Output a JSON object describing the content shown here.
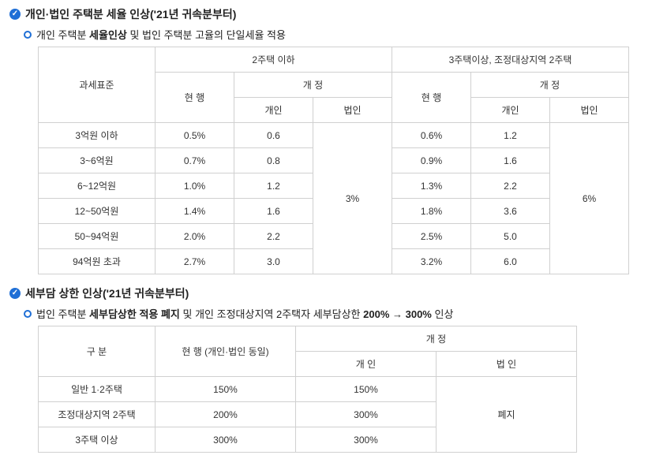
{
  "section1": {
    "title": "개인·법인 주택분 세율 인상('21년 귀속분부터)",
    "subtitle_prefix": "개인 주택분 ",
    "subtitle_bold": "세율인상",
    "subtitle_suffix": " 및 법인 주택분 고율의 단일세율 적용",
    "table": {
      "header": {
        "col1": "과세표준",
        "group1": "2주택 이하",
        "group2": "3주택이상, 조정대상지역 2주택",
        "current": "현 행",
        "revised": "개 정",
        "indiv": "개인",
        "corp": "법인"
      },
      "rows": [
        {
          "cat": "3억원 이하",
          "cur1": "0.5%",
          "rev1": "0.6",
          "cur2": "0.6%",
          "rev2": "1.2"
        },
        {
          "cat": "3~6억원",
          "cur1": "0.7%",
          "rev1": "0.8",
          "cur2": "0.9%",
          "rev2": "1.6"
        },
        {
          "cat": "6~12억원",
          "cur1": "1.0%",
          "rev1": "1.2",
          "cur2": "1.3%",
          "rev2": "2.2"
        },
        {
          "cat": "12~50억원",
          "cur1": "1.4%",
          "rev1": "1.6",
          "cur2": "1.8%",
          "rev2": "3.6"
        },
        {
          "cat": "50~94억원",
          "cur1": "2.0%",
          "rev1": "2.2",
          "cur2": "2.5%",
          "rev2": "5.0"
        },
        {
          "cat": "94억원 초과",
          "cur1": "2.7%",
          "rev1": "3.0",
          "cur2": "3.2%",
          "rev2": "6.0"
        }
      ],
      "corp_rate1": "3%",
      "corp_rate2": "6%"
    }
  },
  "section2": {
    "title": "세부담 상한 인상('21년 귀속분부터)",
    "subtitle_prefix": "법인 주택분 ",
    "subtitle_bold1": "세부담상한 적용 폐지",
    "subtitle_mid": " 및 개인 조정대상지역 2주택자 세부담상한 ",
    "subtitle_bold2": "200% → 300%",
    "subtitle_suffix": " 인상",
    "table": {
      "header": {
        "col1": "구 분",
        "current": "현 행 (개인·법인 동일)",
        "revised": "개 정",
        "indiv": "개 인",
        "corp": "법 인"
      },
      "rows": [
        {
          "cat": "일반 1·2주택",
          "cur": "150%",
          "rev": "150%"
        },
        {
          "cat": "조정대상지역 2주택",
          "cur": "200%",
          "rev": "300%"
        },
        {
          "cat": "3주택 이상",
          "cur": "300%",
          "rev": "300%"
        }
      ],
      "corp_value": "폐지"
    }
  }
}
